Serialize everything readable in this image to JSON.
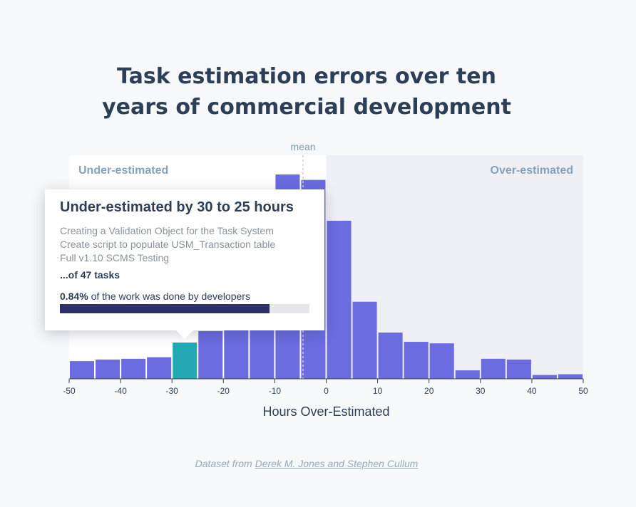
{
  "title_lines": [
    "Task estimation errors over ten",
    "years of commercial development"
  ],
  "chart_data": {
    "type": "bar",
    "xlabel": "Hours Over-Estimated",
    "xlim": [
      -50,
      50
    ],
    "bin_width": 5,
    "x_ticks": [
      -50,
      -40,
      -30,
      -20,
      -10,
      0,
      10,
      20,
      30,
      40,
      50
    ],
    "bins": [
      {
        "start": -50,
        "count": 23
      },
      {
        "start": -45,
        "count": 25
      },
      {
        "start": -40,
        "count": 26
      },
      {
        "start": -35,
        "count": 28
      },
      {
        "start": -30,
        "count": 47
      },
      {
        "start": -25,
        "count": 62
      },
      {
        "start": -20,
        "count": 65
      },
      {
        "start": -15,
        "count": 68
      },
      {
        "start": -10,
        "count": 265
      },
      {
        "start": -5,
        "count": 258
      },
      {
        "start": 0,
        "count": 205
      },
      {
        "start": 5,
        "count": 100
      },
      {
        "start": 10,
        "count": 60
      },
      {
        "start": 15,
        "count": 48
      },
      {
        "start": 20,
        "count": 46
      },
      {
        "start": 25,
        "count": 11
      },
      {
        "start": 30,
        "count": 26
      },
      {
        "start": 35,
        "count": 25
      },
      {
        "start": 40,
        "count": 5
      },
      {
        "start": 45,
        "count": 6
      }
    ],
    "ymax": 290,
    "highlight_bin_start": -30,
    "mean": -4.5,
    "mean_label": "mean",
    "region_labels": {
      "under": "Under-estimated",
      "over": "Over-estimated"
    },
    "colors": {
      "bar": "#6a6ce0",
      "highlight": "#22a9b4",
      "over_region": "#eff0f5",
      "under_region": "#ffffff"
    }
  },
  "tooltip": {
    "heading": "Under-estimated by 30 to 25 hours",
    "tasks": [
      "Creating a Validation Object for the Task System",
      "Create script to populate USM_Transaction table",
      "Full v1.10 SCMS Testing"
    ],
    "total": "...of 47 tasks",
    "share_value": "0.84%",
    "share_text": " of the work was done by developers",
    "share_fraction": 0.84
  },
  "footer": {
    "prefix": "Dataset from ",
    "link_text": "Derek M. Jones and Stephen Cullum"
  }
}
